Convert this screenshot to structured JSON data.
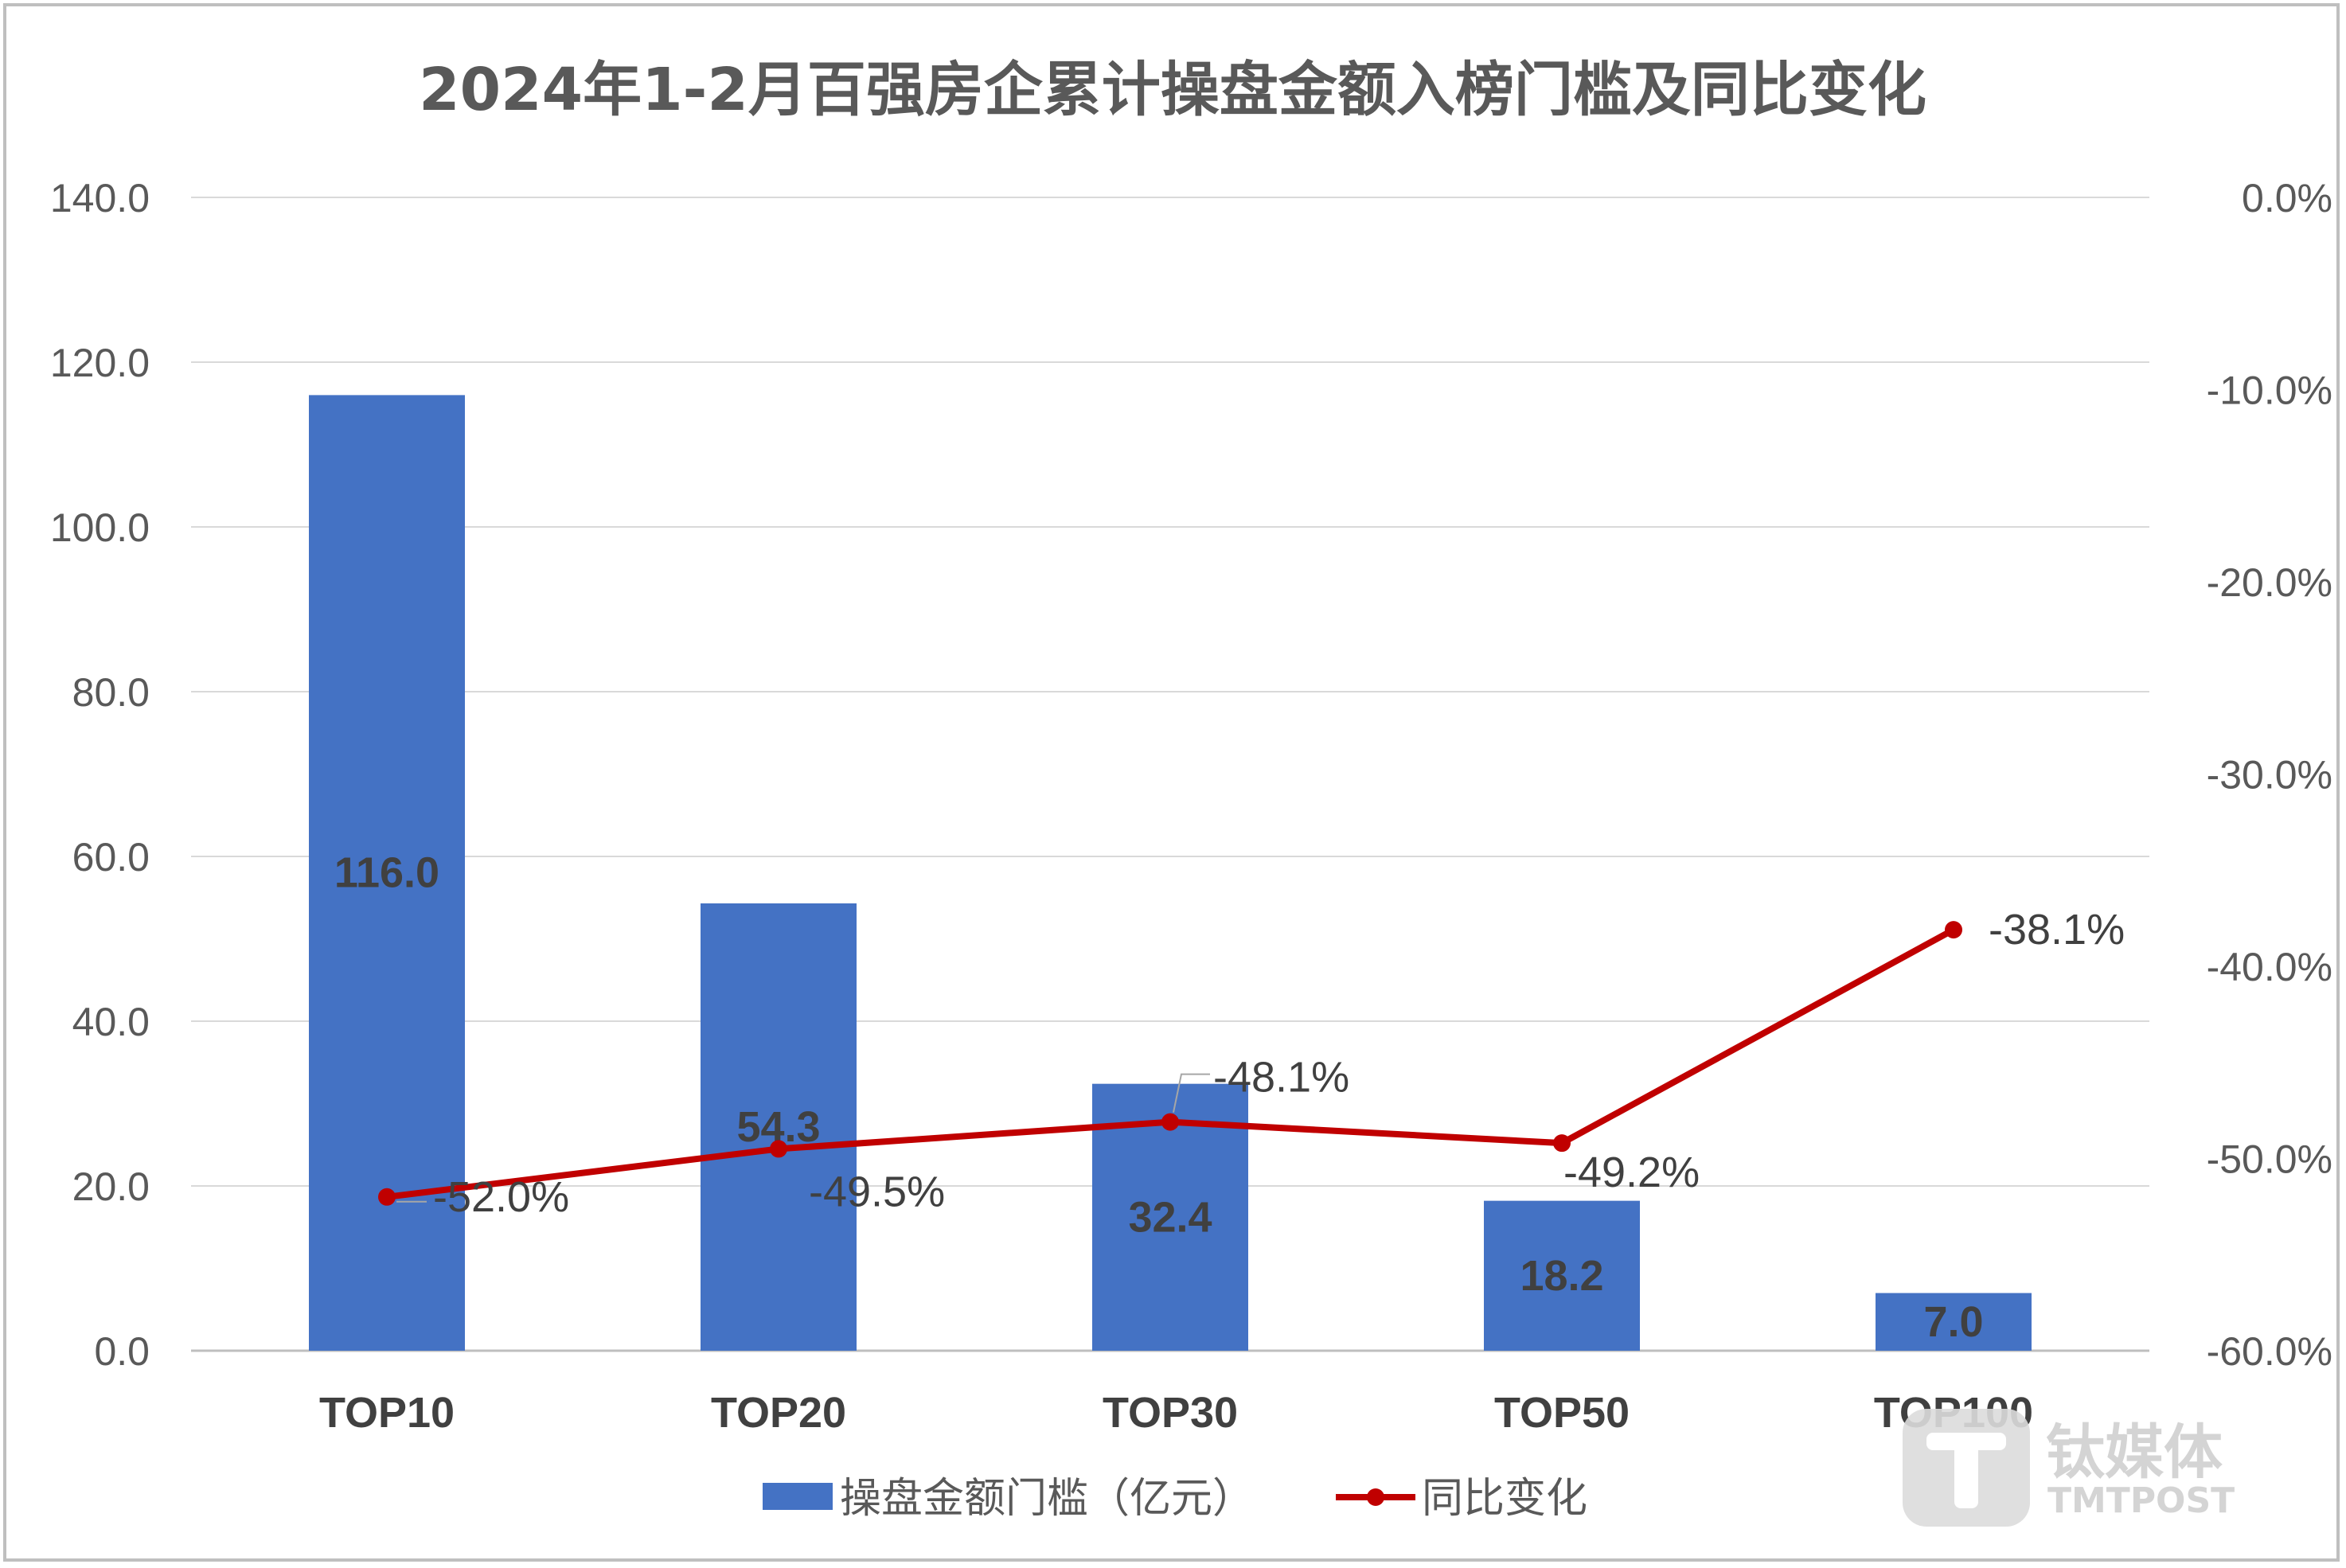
{
  "chart_data": {
    "type": "bar",
    "title": "2024年1-2月百强房企累计操盘金额入榜门槛及同比变化",
    "categories": [
      "TOP10",
      "TOP20",
      "TOP30",
      "TOP50",
      "TOP100"
    ],
    "series": [
      {
        "name": "操盘金额门槛（亿元）",
        "type": "bar",
        "axis": "left",
        "color": "#4472C4",
        "values": [
          116.0,
          54.3,
          32.4,
          18.2,
          7.0
        ],
        "labels": [
          "116.0",
          "54.3",
          "32.4",
          "18.2",
          "7.0"
        ]
      },
      {
        "name": "同比变化",
        "type": "line",
        "axis": "right",
        "color": "#C00000",
        "values": [
          -52.0,
          -49.5,
          -48.1,
          -49.2,
          -38.1
        ],
        "labels": [
          "-52.0%",
          "-49.5%",
          "-48.1%",
          "-49.2%",
          "-38.1%"
        ]
      }
    ],
    "y_left": {
      "min": 0,
      "max": 140,
      "step": 20,
      "ticks": [
        "0.0",
        "20.0",
        "40.0",
        "60.0",
        "80.0",
        "100.0",
        "120.0",
        "140.0"
      ]
    },
    "y_right": {
      "min": -60,
      "max": 0,
      "step": 10,
      "ticks": [
        "-60.0%",
        "-50.0%",
        "-40.0%",
        "-30.0%",
        "-20.0%",
        "-10.0%",
        "0.0%"
      ]
    },
    "grid": true,
    "legend_position": "bottom"
  },
  "watermark": {
    "brand": "钛媒体",
    "sub": "TMTPOST"
  }
}
